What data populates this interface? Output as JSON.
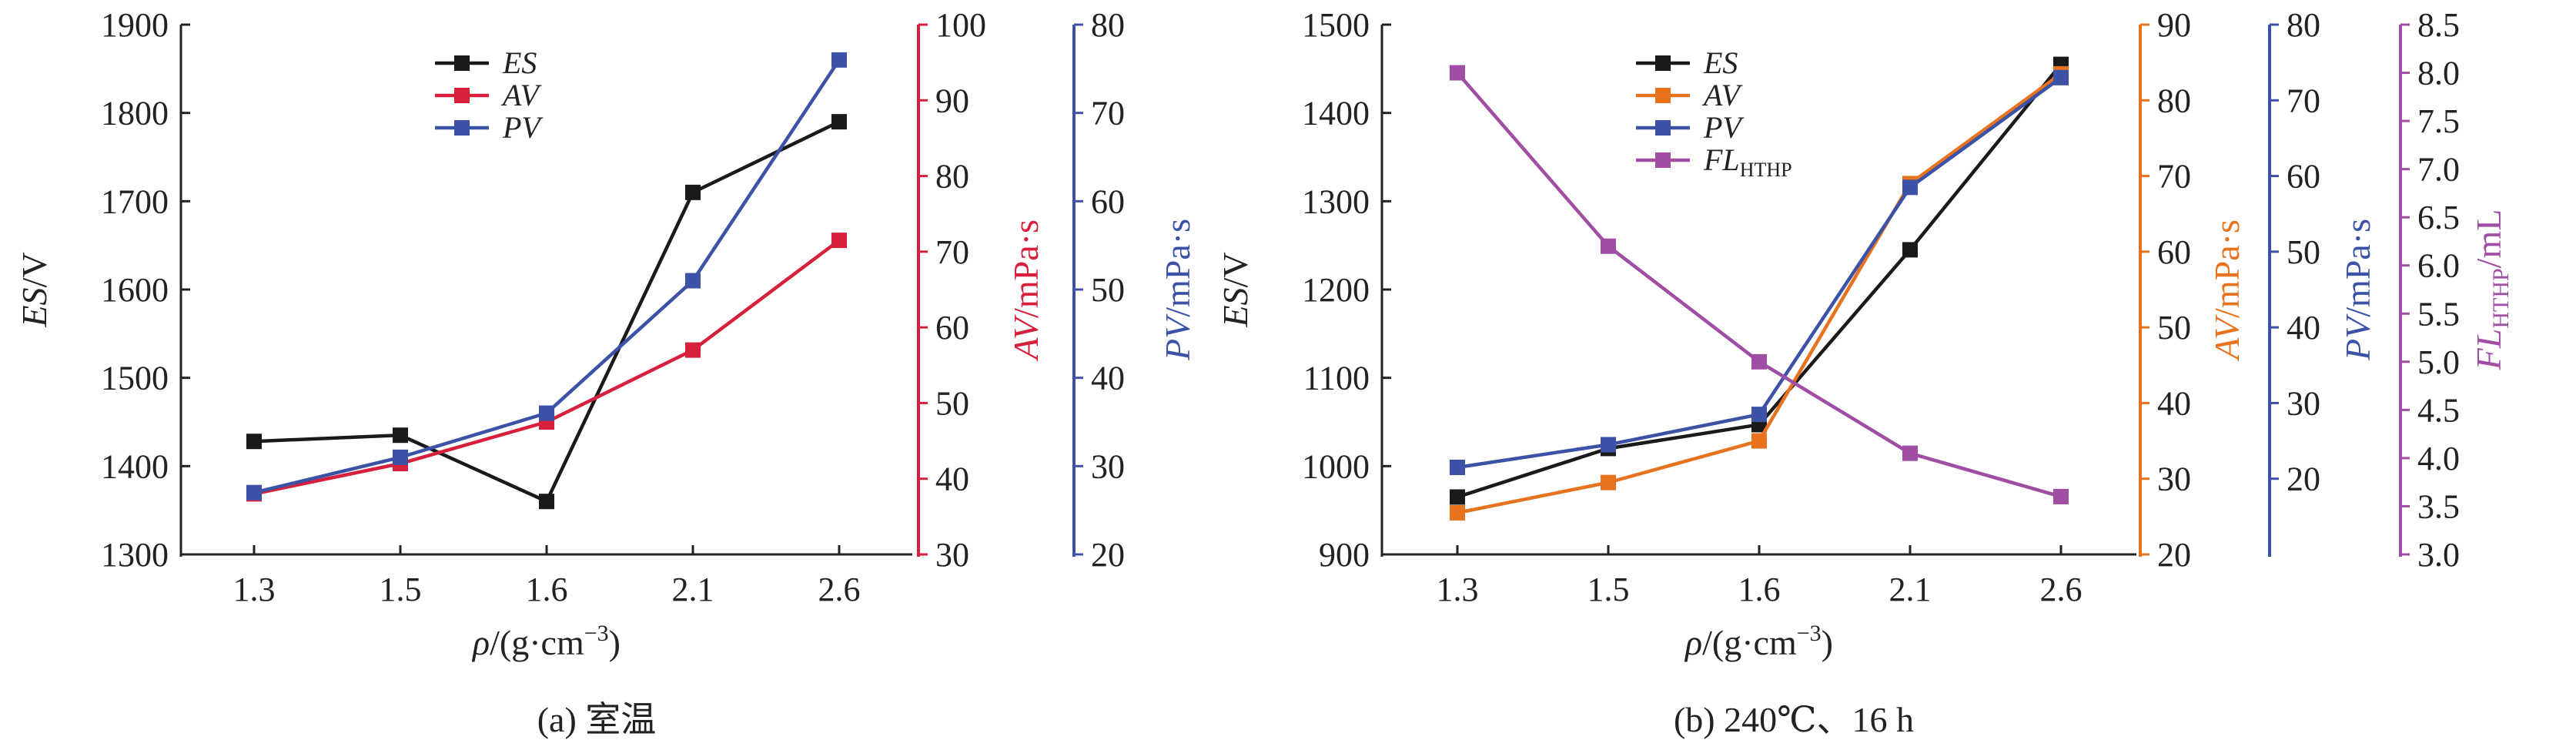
{
  "colors": {
    "ES": "#1a1a1a",
    "AV_a": "#d7203c",
    "PV": "#3c52a6",
    "AV_b": "#e8731f",
    "FL": "#a04da4"
  },
  "chart_data": [
    {
      "type": "line",
      "caption": "(a) 室温",
      "categories": [
        "1.3",
        "1.5",
        "1.6",
        "2.1",
        "2.6"
      ],
      "xlabel": "ρ/(g·cm⁻³)",
      "xlabel_parts": {
        "rho": "ρ",
        "mid": "/(g·cm",
        "exp": "−3",
        "close": ")"
      },
      "legend": [
        "ES",
        "AV",
        "PV"
      ],
      "axes": [
        {
          "id": "ES",
          "label": "ES/V",
          "label_var": "ES",
          "label_unit": "/V",
          "min": 1300,
          "max": 1900,
          "ticks": [
            "1300",
            "1400",
            "1500",
            "1600",
            "1700",
            "1800",
            "1900"
          ]
        },
        {
          "id": "AV",
          "label": "AV/mPa·s",
          "label_var": "AV",
          "label_unit": "/mPa·s",
          "min": 30,
          "max": 100,
          "ticks": [
            "30",
            "40",
            "50",
            "60",
            "70",
            "80",
            "90",
            "100"
          ]
        },
        {
          "id": "PV",
          "label": "PV/mPa·s",
          "label_var": "PV",
          "label_unit": "/mPa·s",
          "min": 20,
          "max": 80,
          "ticks": [
            "20",
            "30",
            "40",
            "50",
            "60",
            "70",
            "80"
          ]
        }
      ],
      "series": [
        {
          "name": "ES",
          "axis": "ES",
          "color": "#1a1a1a",
          "values": [
            1428,
            1435,
            1360,
            1710,
            1790
          ]
        },
        {
          "name": "AV",
          "axis": "AV",
          "color": "#d7203c",
          "values": [
            38,
            42,
            47.5,
            57,
            71.5
          ]
        },
        {
          "name": "PV",
          "axis": "PV",
          "color": "#3c52a6",
          "values": [
            27,
            31,
            36,
            51,
            76
          ]
        }
      ]
    },
    {
      "type": "line",
      "caption": "(b) 240℃、16 h",
      "categories": [
        "1.3",
        "1.5",
        "1.6",
        "2.1",
        "2.6"
      ],
      "xlabel": "ρ/(g·cm⁻³)",
      "xlabel_parts": {
        "rho": "ρ",
        "mid": "/(g·cm",
        "exp": "−3",
        "close": ")"
      },
      "legend": [
        "ES",
        "AV",
        "PV",
        "FLHTHP"
      ],
      "legend_fl": {
        "base": "FL",
        "sub": "HTHP"
      },
      "axes": [
        {
          "id": "ES",
          "label": "ES/V",
          "label_var": "ES",
          "label_unit": "/V",
          "min": 900,
          "max": 1500,
          "ticks": [
            "900",
            "1000",
            "1100",
            "1200",
            "1300",
            "1400",
            "1500"
          ]
        },
        {
          "id": "AV",
          "label": "AV/mPa·s",
          "label_var": "AV",
          "label_unit": "/mPa·s",
          "min": 20,
          "max": 90,
          "ticks": [
            "20",
            "30",
            "40",
            "50",
            "60",
            "70",
            "80",
            "90"
          ]
        },
        {
          "id": "PV",
          "label": "PV/mPa·s",
          "label_var": "PV",
          "label_unit": "/mPa·s",
          "min": 10,
          "max": 80,
          "ticks": [
            "20",
            "30",
            "40",
            "50",
            "60",
            "70",
            "80"
          ]
        },
        {
          "id": "FL",
          "label": "FLHTHP/mL",
          "label_var": "FL",
          "label_sub": "HTHP",
          "label_unit": "/mL",
          "min": 3.0,
          "max": 8.5,
          "ticks": [
            "3.0",
            "3.5",
            "4.0",
            "4.5",
            "5.0",
            "5.5",
            "6.0",
            "6.5",
            "7.0",
            "7.5",
            "8.0",
            "8.5"
          ]
        }
      ],
      "series": [
        {
          "name": "ES",
          "axis": "ES",
          "color": "#1a1a1a",
          "values": [
            965,
            1020,
            1047,
            1245,
            1455
          ]
        },
        {
          "name": "AV",
          "axis": "AV",
          "color": "#e8731f",
          "values": [
            25.5,
            29.5,
            35,
            69,
            83.5
          ]
        },
        {
          "name": "PV",
          "axis": "PV",
          "color": "#3c52a6",
          "values": [
            21.5,
            24.5,
            28.5,
            58.5,
            73
          ]
        },
        {
          "name": "FLHTHP",
          "axis": "FL",
          "color": "#a04da4",
          "values": [
            8.0,
            6.2,
            5.0,
            4.05,
            3.6
          ]
        }
      ]
    }
  ]
}
